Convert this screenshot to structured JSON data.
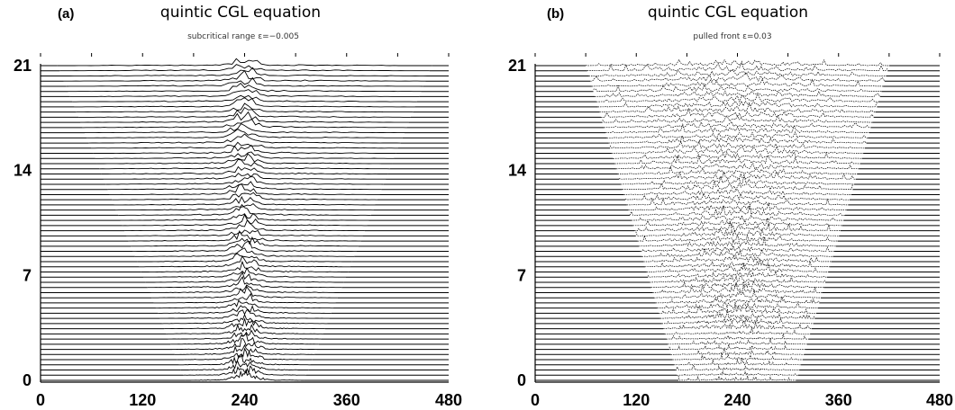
{
  "chart_data": [
    {
      "panel": "(a)",
      "title": "quintic CGL equation",
      "subtitle": "subcritical range ε=−0.005",
      "type": "waterfall",
      "xticks": [
        "0",
        "120",
        "240",
        "360",
        "480"
      ],
      "yticks": [
        "0",
        "7",
        "14",
        "21"
      ],
      "xlim": [
        0,
        480
      ],
      "ylim": [
        0,
        21
      ],
      "front_half_width_at_top": 220,
      "front_half_width_at_bottom": 70,
      "core_half_width": 30,
      "core_center": 240,
      "structure": "localized pulsating core"
    },
    {
      "panel": "(b)",
      "title": "quintic CGL equation",
      "subtitle": "pulled front ε=0.03",
      "type": "waterfall",
      "xticks": [
        "0",
        "120",
        "240",
        "360",
        "480"
      ],
      "yticks": [
        "0",
        "7",
        "14",
        "21"
      ],
      "xlim": [
        0,
        480
      ],
      "ylim": [
        0,
        21
      ],
      "front_half_width_at_top": 180,
      "front_half_width_at_bottom": 70,
      "core_half_width": 20,
      "core_center": 240,
      "structure": "spreading turbulent front"
    }
  ]
}
